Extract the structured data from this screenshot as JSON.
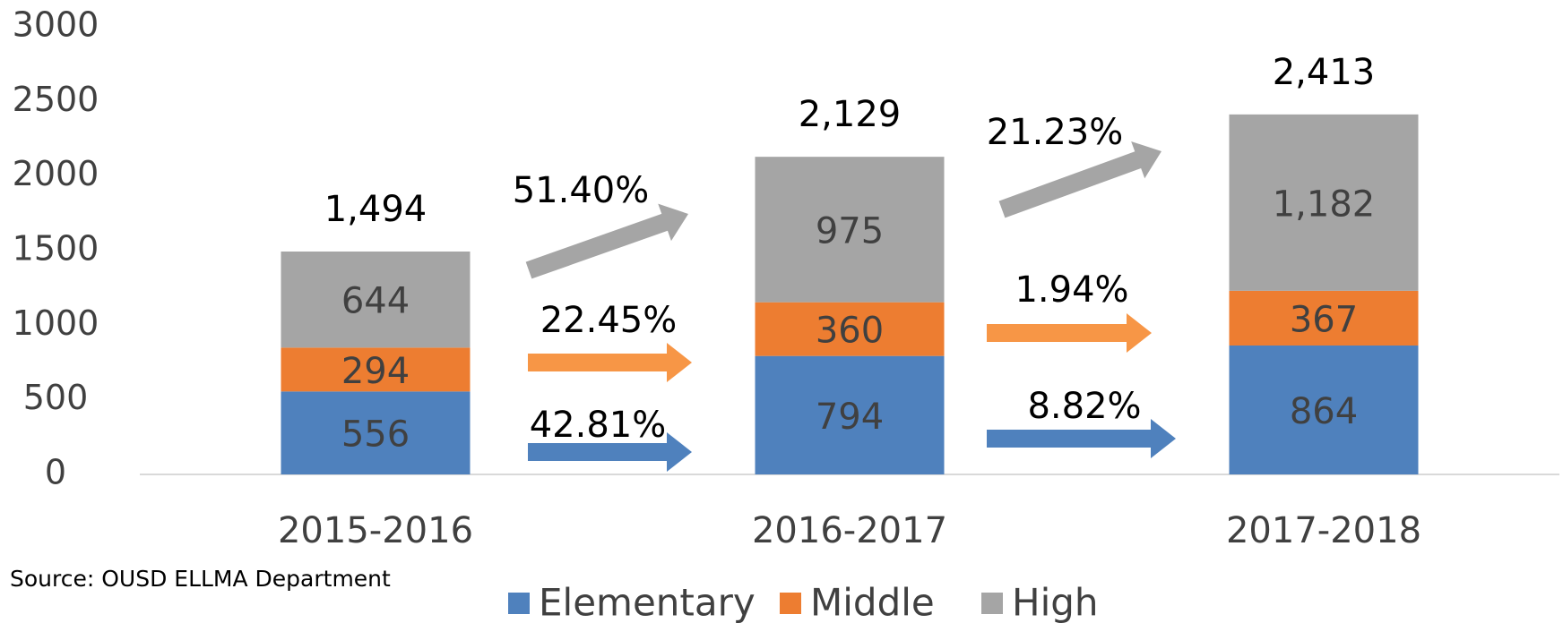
{
  "chart_data": {
    "type": "stacked-bar",
    "categories": [
      "2015-2016",
      "2016-2017",
      "2017-2018"
    ],
    "series": [
      {
        "name": "Elementary",
        "color": "#4f81bd",
        "values": [
          556,
          794,
          864
        ]
      },
      {
        "name": "Middle",
        "color": "#ed7d31",
        "values": [
          294,
          360,
          367
        ]
      },
      {
        "name": "High",
        "color": "#a5a5a5",
        "values": [
          644,
          975,
          1182
        ],
        "value_labels": [
          "644",
          "975",
          "1,182"
        ]
      }
    ],
    "totals": [
      1494,
      2129,
      2413
    ],
    "total_labels": [
      "1,494",
      "2,129",
      "2,413"
    ],
    "annotations": [
      "51.40%",
      "22.45%",
      "42.81%",
      "21.23%",
      "1.94%",
      "8.82%"
    ],
    "source": "Source: OUSD ELLMA Department",
    "ylim": [
      0,
      3000
    ],
    "yticks": [
      0,
      500,
      1000,
      1500,
      2000,
      2500,
      3000
    ],
    "legend": "bottom"
  }
}
